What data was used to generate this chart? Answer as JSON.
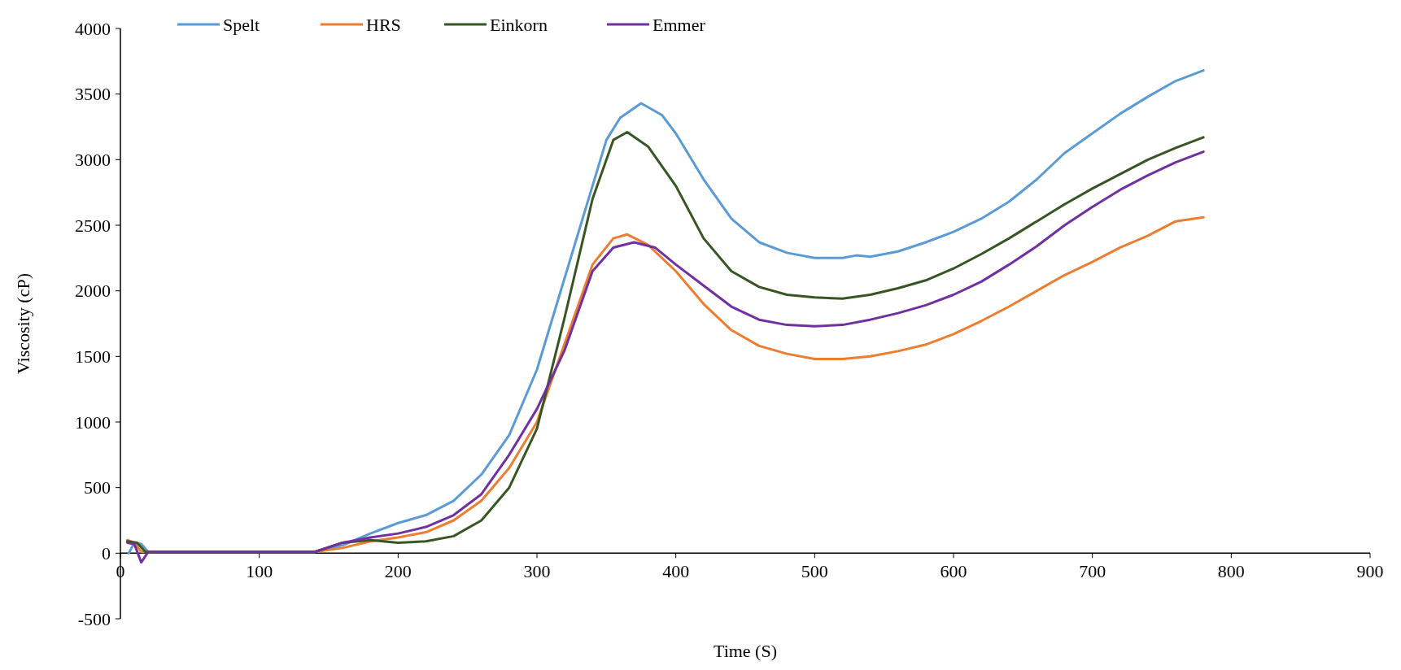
{
  "chart_data": {
    "type": "line",
    "xlabel": "Time (S)",
    "ylabel": "Viscosity (cP)",
    "xlim": [
      0,
      900
    ],
    "xticks": [
      0,
      100,
      200,
      300,
      400,
      500,
      600,
      700,
      800,
      900
    ],
    "ylim": [
      -500,
      4000
    ],
    "yticks": [
      -500,
      0,
      500,
      1000,
      1500,
      2000,
      2500,
      3000,
      3500,
      4000
    ],
    "grid": false,
    "legend": "top",
    "marker": "none",
    "line_style": "solid",
    "series": [
      {
        "name": "Spelt",
        "color": "#5b9bd5",
        "x": [
          6,
          10,
          15,
          20,
          140,
          160,
          180,
          200,
          220,
          240,
          260,
          280,
          300,
          320,
          340,
          350,
          360,
          375,
          390,
          400,
          420,
          440,
          460,
          480,
          500,
          520,
          530,
          540,
          560,
          580,
          600,
          620,
          640,
          660,
          680,
          700,
          720,
          740,
          760,
          780
        ],
        "values": [
          0,
          80,
          70,
          10,
          10,
          60,
          150,
          230,
          290,
          400,
          600,
          900,
          1400,
          2100,
          2800,
          3150,
          3320,
          3430,
          3340,
          3200,
          2850,
          2550,
          2370,
          2290,
          2250,
          2250,
          2270,
          2260,
          2300,
          2370,
          2450,
          2550,
          2680,
          2850,
          3050,
          3200,
          3350,
          3480,
          3600,
          3680
        ]
      },
      {
        "name": "HRS",
        "color": "#ed7d31",
        "x": [
          5,
          10,
          15,
          140,
          160,
          180,
          200,
          220,
          240,
          260,
          280,
          300,
          320,
          340,
          355,
          365,
          380,
          400,
          420,
          440,
          460,
          480,
          500,
          520,
          540,
          560,
          580,
          600,
          620,
          640,
          660,
          680,
          700,
          720,
          740,
          760,
          780
        ],
        "values": [
          100,
          80,
          10,
          10,
          40,
          90,
          120,
          160,
          250,
          400,
          650,
          1000,
          1600,
          2200,
          2400,
          2430,
          2350,
          2150,
          1900,
          1700,
          1580,
          1520,
          1480,
          1480,
          1500,
          1540,
          1590,
          1670,
          1770,
          1880,
          2000,
          2120,
          2220,
          2330,
          2420,
          2530,
          2560
        ]
      },
      {
        "name": "Einkorn",
        "color": "#375623",
        "x": [
          5,
          12,
          18,
          140,
          160,
          180,
          200,
          220,
          240,
          260,
          280,
          300,
          320,
          340,
          355,
          365,
          380,
          400,
          420,
          440,
          460,
          480,
          500,
          520,
          540,
          560,
          580,
          600,
          620,
          640,
          660,
          680,
          700,
          720,
          740,
          760,
          780
        ],
        "values": [
          90,
          80,
          10,
          10,
          80,
          100,
          80,
          90,
          130,
          250,
          500,
          950,
          1800,
          2700,
          3150,
          3210,
          3100,
          2800,
          2400,
          2150,
          2030,
          1970,
          1950,
          1940,
          1970,
          2020,
          2080,
          2170,
          2280,
          2400,
          2530,
          2660,
          2780,
          2890,
          3000,
          3090,
          3170
        ]
      },
      {
        "name": "Emmer",
        "color": "#7030a0",
        "x": [
          5,
          10,
          15,
          20,
          140,
          160,
          180,
          200,
          220,
          240,
          260,
          280,
          300,
          320,
          340,
          355,
          370,
          385,
          400,
          420,
          440,
          460,
          480,
          500,
          520,
          540,
          560,
          580,
          600,
          620,
          640,
          660,
          680,
          700,
          720,
          740,
          760,
          780
        ],
        "values": [
          80,
          70,
          -70,
          10,
          10,
          80,
          120,
          150,
          200,
          290,
          450,
          750,
          1100,
          1550,
          2150,
          2330,
          2370,
          2330,
          2200,
          2040,
          1880,
          1780,
          1740,
          1730,
          1740,
          1780,
          1830,
          1890,
          1970,
          2070,
          2200,
          2340,
          2500,
          2640,
          2770,
          2880,
          2980,
          3060
        ]
      }
    ]
  }
}
